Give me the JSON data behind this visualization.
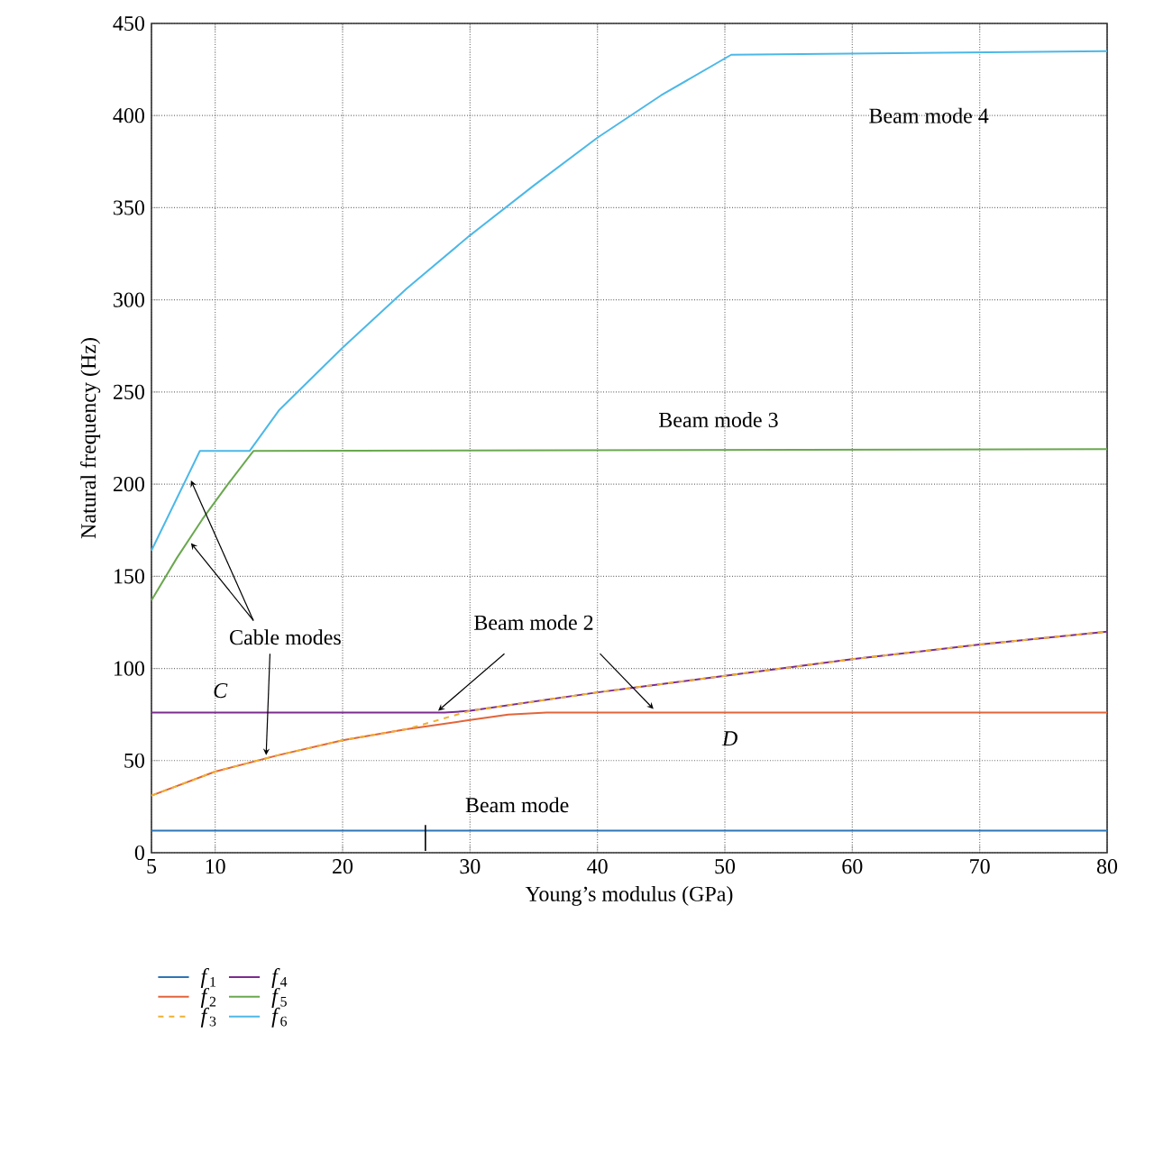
{
  "chart_data": {
    "type": "line",
    "xlabel": "Young’s modulus (GPa)",
    "ylabel": "Natural frequency (Hz)",
    "xlim": [
      5,
      80
    ],
    "xticks": [
      5,
      10,
      20,
      30,
      40,
      50,
      60,
      70,
      80
    ],
    "ylim": [
      0,
      450
    ],
    "yticks": [
      0,
      50,
      100,
      150,
      200,
      250,
      300,
      350,
      400,
      450
    ],
    "grid": true,
    "legend": "bottom",
    "line_style": "solid",
    "marker": "none",
    "series": [
      {
        "name": "*f*$_{1}$",
        "color": "#2e75b6",
        "x": [
          5,
          80
        ],
        "values": [
          12,
          12
        ]
      },
      {
        "name": "*f*$_{2}$",
        "color": "#e2653a",
        "x": [
          5,
          10,
          15,
          20,
          25,
          30,
          33,
          36,
          80
        ],
        "values": [
          31,
          44,
          53,
          61,
          67,
          72,
          75,
          76,
          76
        ]
      },
      {
        "name": "*f*$_{3}$",
        "color": "#f0b030",
        "line_style": "dashed",
        "x": [
          5,
          10,
          15,
          20,
          25,
          30,
          40,
          50,
          60,
          70,
          80
        ],
        "values": [
          31,
          44,
          53,
          61,
          67,
          77,
          87,
          96,
          105,
          113,
          120
        ]
      },
      {
        "name": "*f*$_{4}$",
        "color": "#7b2d8e",
        "x": [
          5,
          28,
          30,
          40,
          50,
          60,
          70,
          80
        ],
        "values": [
          76,
          76,
          77,
          87,
          96,
          105,
          113,
          120
        ]
      },
      {
        "name": "*f*$_{5}$",
        "color": "#6aa84f",
        "x": [
          5,
          7,
          9,
          11,
          13,
          80
        ],
        "values": [
          137,
          160,
          181,
          200,
          218,
          219
        ]
      },
      {
        "name": "*f*$_{6}$",
        "color": "#4cb8e8",
        "x": [
          5,
          8.8,
          12.7,
          15,
          20,
          25,
          30,
          35,
          40,
          45,
          50.5,
          80
        ],
        "values": [
          164,
          218,
          218,
          240,
          274,
          306,
          335,
          362,
          388,
          411,
          433,
          435
        ]
      }
    ],
    "annotations": [
      "Beam mode 4",
      "Beam mode 3",
      {
        "text": "Beam mode 2",
        "x": 27.5,
        "y": 77
      },
      {
        "text": "Cable modes",
        "x": 14,
        "y": 53
      },
      "*C*",
      "*D*",
      "Beam mode"
    ]
  }
}
